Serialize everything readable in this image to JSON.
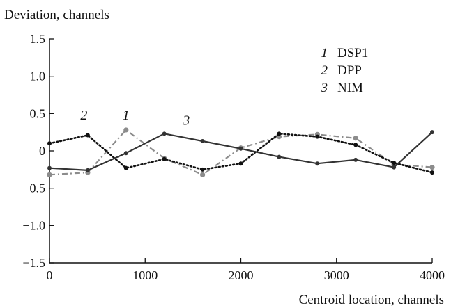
{
  "chart_data": {
    "type": "line",
    "title": "",
    "xlabel": "Centroid location, channels",
    "ylabel": "Deviation, channels",
    "xlim": [
      0,
      4000
    ],
    "ylim": [
      -1.5,
      1.5
    ],
    "x_ticks": [
      0,
      1000,
      2000,
      3000,
      4000
    ],
    "x_tick_labels": [
      "0",
      "1000",
      "2000",
      "3000",
      "4000"
    ],
    "y_ticks": [
      -1.5,
      -1.0,
      -0.5,
      0,
      0.5,
      1.0,
      1.5
    ],
    "y_tick_labels": [
      "−1.5",
      "−1.0",
      "−0.5",
      "0",
      "0.5",
      "1.0",
      "1.5"
    ],
    "grid": false,
    "legend_position": "top-right",
    "legend": [
      {
        "num": "1",
        "name": "DSP1"
      },
      {
        "num": "2",
        "name": "DPP"
      },
      {
        "num": "3",
        "name": "NIM"
      }
    ],
    "series": [
      {
        "name": "DSP1",
        "tag": "1",
        "color": "#8c8c8c",
        "style": "dash-dot",
        "x": [
          0,
          400,
          800,
          1200,
          1600,
          2000,
          2400,
          2800,
          3200,
          3600,
          4000
        ],
        "y": [
          -0.32,
          -0.29,
          0.28,
          -0.1,
          -0.32,
          0.04,
          0.19,
          0.22,
          0.17,
          -0.18,
          -0.22
        ]
      },
      {
        "name": "DPP",
        "tag": "2",
        "color": "#111111",
        "style": "dotted",
        "x": [
          0,
          400,
          800,
          1200,
          1600,
          2000,
          2400,
          2800,
          3200,
          3600,
          4000
        ],
        "y": [
          0.1,
          0.21,
          -0.23,
          -0.11,
          -0.25,
          -0.17,
          0.23,
          0.19,
          0.08,
          -0.16,
          -0.29
        ]
      },
      {
        "name": "NIM",
        "tag": "3",
        "color": "#333333",
        "style": "solid",
        "x": [
          0,
          400,
          800,
          1200,
          1600,
          2000,
          2400,
          2800,
          3200,
          3600,
          4000
        ],
        "y": [
          -0.23,
          -0.26,
          -0.03,
          0.23,
          0.13,
          0.03,
          -0.08,
          -0.17,
          -0.12,
          -0.22,
          0.25
        ]
      }
    ],
    "annotations": [
      {
        "text": "2",
        "x": 360,
        "y": 0.42
      },
      {
        "text": "1",
        "x": 800,
        "y": 0.42
      },
      {
        "text": "3",
        "x": 1430,
        "y": 0.35
      }
    ]
  }
}
